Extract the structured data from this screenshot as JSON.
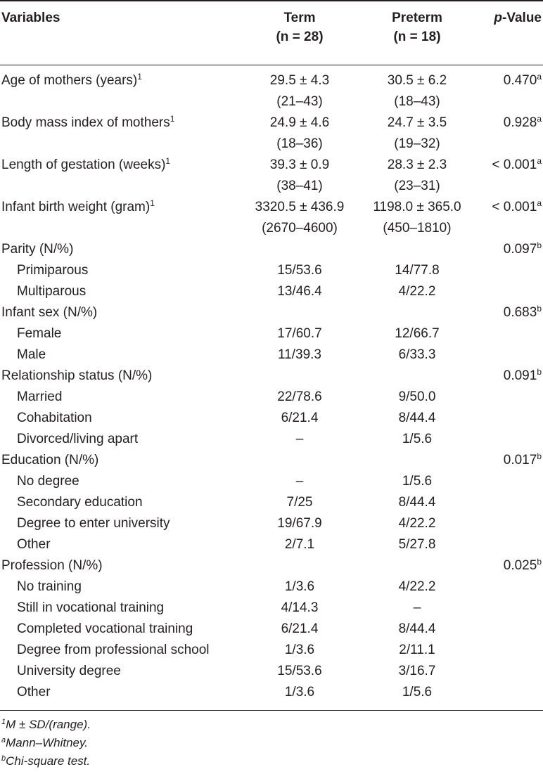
{
  "header": {
    "variables": "Variables",
    "term_title": "Term",
    "term_n": "(n = 28)",
    "preterm_title": "Preterm",
    "preterm_n": "(n = 18)",
    "p_italic": "p",
    "p_rest": "-Value"
  },
  "rows": [
    {
      "label": "Age of mothers (years)",
      "label_sup": "1",
      "term": "29.5 ± 4.3",
      "term2": "(21–43)",
      "preterm": "30.5 ± 6.2",
      "preterm2": "(18–43)",
      "p": "0.470",
      "p_sup": "a"
    },
    {
      "label": "Body mass index of mothers",
      "label_sup": "1",
      "term": "24.9 ± 4.6",
      "term2": "(18–36)",
      "preterm": "24.7 ± 3.5",
      "preterm2": "(19–32)",
      "p": "0.928",
      "p_sup": "a"
    },
    {
      "label": "Length of gestation (weeks)",
      "label_sup": "1",
      "term": "39.3 ± 0.9",
      "term2": "(38–41)",
      "preterm": "28.3 ± 2.3",
      "preterm2": "(23–31)",
      "p": "< 0.001",
      "p_sup": "a"
    },
    {
      "label": "Infant birth weight (gram)",
      "label_sup": "1",
      "term": "3320.5 ± 436.9",
      "term2": "(2670–4600)",
      "preterm": "1198.0 ± 365.0",
      "preterm2": "(450–1810)",
      "p": "< 0.001",
      "p_sup": "a"
    },
    {
      "label": "Parity (N/%)",
      "p": "0.097",
      "p_sup": "b"
    },
    {
      "label": "Primiparous",
      "term": "15/53.6",
      "preterm": "14/77.8"
    },
    {
      "label": "Multiparous",
      "term": "13/46.4",
      "preterm": "4/22.2"
    },
    {
      "label": "Infant sex (N/%)",
      "p": "0.683",
      "p_sup": "b"
    },
    {
      "label": "Female",
      "term": "17/60.7",
      "preterm": "12/66.7"
    },
    {
      "label": "Male",
      "term": "11/39.3",
      "preterm": "6/33.3"
    },
    {
      "label": "Relationship status (N/%)",
      "p": "0.091",
      "p_sup": "b"
    },
    {
      "label": "Married",
      "term": "22/78.6",
      "preterm": "9/50.0"
    },
    {
      "label": "Cohabitation",
      "term": "6/21.4",
      "preterm": "8/44.4"
    },
    {
      "label": "Divorced/living apart",
      "term": "–",
      "preterm": "1/5.6"
    },
    {
      "label": "Education (N/%)",
      "p": "0.017",
      "p_sup": "b"
    },
    {
      "label": "No degree",
      "term": "–",
      "preterm": "1/5.6"
    },
    {
      "label": "Secondary education",
      "term": "7/25",
      "preterm": "8/44.4"
    },
    {
      "label": "Degree to enter university",
      "term": "19/67.9",
      "preterm": "4/22.2"
    },
    {
      "label": "Other",
      "term": "2/7.1",
      "preterm": "5/27.8"
    },
    {
      "label": "Profession (N/%)",
      "p": "0.025",
      "p_sup": "b"
    },
    {
      "label": "No training",
      "term": "1/3.6",
      "preterm": "4/22.2"
    },
    {
      "label": "Still in vocational training",
      "term": "4/14.3",
      "preterm": "–"
    },
    {
      "label": "Completed vocational training",
      "term": "6/21.4",
      "preterm": "8/44.4"
    },
    {
      "label": "Degree from professional school",
      "term": "1/3.6",
      "preterm": "2/11.1"
    },
    {
      "label": "University degree",
      "term": "15/53.6",
      "preterm": "3/16.7"
    },
    {
      "label": "Other",
      "term": "1/3.6",
      "preterm": "1/5.6"
    }
  ],
  "footnotes": {
    "f1_mark": "1",
    "f1_text": "M ± SD/(range).",
    "fa_mark": "a",
    "fa_text": "Mann–Whitney.",
    "fb_mark": "b",
    "fb_text": "Chi-square test."
  }
}
